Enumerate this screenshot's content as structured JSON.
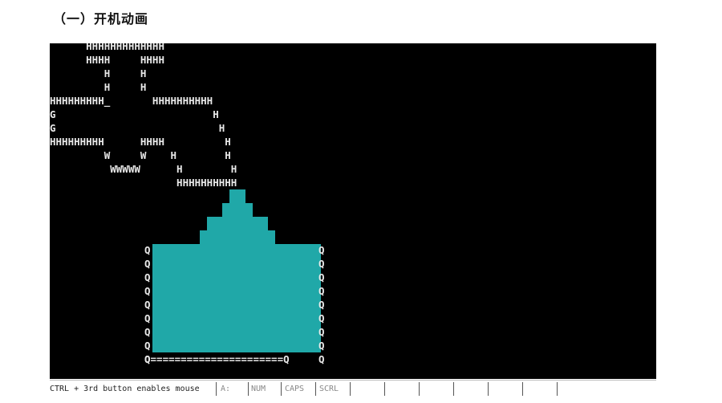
{
  "heading": "（一）开机动画",
  "screen": {
    "art_lines": [
      "      HHHHHHHHHHHHH",
      "      HHHH     HHHH",
      "         H     H",
      "         H     H",
      "HHHHHHHHH_       HHHHHHHHHH",
      "G                          H",
      "G                           H",
      "HHHHHHHHH      HHHH          H",
      "         W     W    H        H",
      "          WWWWW      H        H",
      "                     HHHHHHHHHH"
    ],
    "q_left": "Q\nQ\nQ\nQ\nQ\nQ\nQ\nQ\nQ",
    "q_right": "Q\nQ\nQ\nQ\nQ\nQ\nQ\nQ\nQ",
    "bottom_line": "Q======================Q",
    "fill_color": "#20a8a8"
  },
  "status": {
    "message": "CTRL + 3rd button enables mouse",
    "drive": "A:",
    "num": "NUM",
    "caps": "CAPS",
    "scrl": "SCRL"
  }
}
